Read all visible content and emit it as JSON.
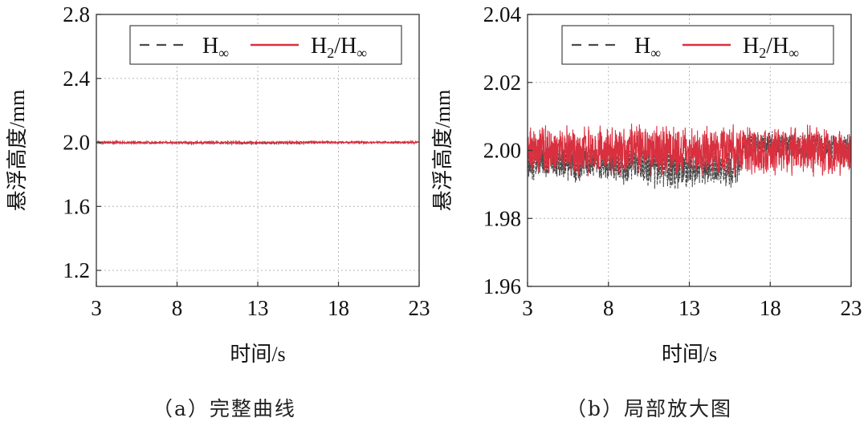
{
  "chart_data": [
    {
      "type": "line",
      "caption": "（a）完整曲线",
      "xlabel": "时间/s",
      "ylabel": "悬浮高度/mm",
      "xlim": [
        3,
        23
      ],
      "ylim": [
        1.1,
        2.8
      ],
      "xticks": [
        "3",
        "8",
        "13",
        "18",
        "23"
      ],
      "yticks": [
        "1.2",
        "1.6",
        "2.0",
        "2.4",
        "2.8"
      ],
      "grid": true,
      "legend_position": "top-right",
      "series": [
        {
          "name": "H∞",
          "legend_main": "H",
          "legend_sub": "∞",
          "style": "dashed",
          "color": "#4a4a4a",
          "mean": 2.0,
          "noise": [
            [
              3,
              0.006
            ],
            [
              8,
              0.006
            ],
            [
              12,
              0.007
            ],
            [
              16,
              0.006
            ],
            [
              16.5,
              0.004
            ],
            [
              23,
              0.004
            ]
          ],
          "offset": [
            [
              3,
              -0.003
            ],
            [
              8,
              -0.004
            ],
            [
              12,
              -0.005
            ],
            [
              16,
              -0.005
            ],
            [
              16.5,
              0.002
            ],
            [
              23,
              0.001
            ]
          ]
        },
        {
          "name": "H2/H∞",
          "legend_main": "H",
          "legend_sub": "2",
          "legend_rest": "/H",
          "legend_sub2": "∞",
          "style": "solid",
          "color": "#d9303f",
          "mean": 2.0,
          "noise": [
            [
              3,
              0.008
            ],
            [
              23,
              0.008
            ]
          ],
          "offset": [
            [
              3,
              0
            ],
            [
              23,
              0
            ]
          ]
        }
      ]
    },
    {
      "type": "line",
      "caption": "（b）局部放大图",
      "xlabel": "时间/s",
      "ylabel": "悬浮高度/mm",
      "xlim": [
        3,
        23
      ],
      "ylim": [
        1.96,
        2.04
      ],
      "xticks": [
        "3",
        "8",
        "13",
        "18",
        "23"
      ],
      "yticks": [
        "1.96",
        "1.98",
        "2.00",
        "2.02",
        "2.04"
      ],
      "grid": true,
      "legend_position": "top-right",
      "series": [
        {
          "name": "H∞",
          "legend_main": "H",
          "legend_sub": "∞",
          "style": "dashed",
          "color": "#4a4a4a",
          "mean": 2.0,
          "noise": [
            [
              3,
              0.006
            ],
            [
              8,
              0.006
            ],
            [
              12,
              0.007
            ],
            [
              16,
              0.006
            ],
            [
              16.5,
              0.004
            ],
            [
              23,
              0.004
            ]
          ],
          "offset": [
            [
              3,
              -0.003
            ],
            [
              8,
              -0.004
            ],
            [
              12,
              -0.005
            ],
            [
              16,
              -0.005
            ],
            [
              16.5,
              0.002
            ],
            [
              23,
              0.001
            ]
          ]
        },
        {
          "name": "H2/H∞",
          "legend_main": "H",
          "legend_sub": "2",
          "legend_rest": "/H",
          "legend_sub2": "∞",
          "style": "solid",
          "color": "#d9303f",
          "mean": 2.0,
          "noise": [
            [
              3,
              0.008
            ],
            [
              23,
              0.008
            ]
          ],
          "offset": [
            [
              3,
              0
            ],
            [
              23,
              0
            ]
          ]
        }
      ]
    }
  ]
}
